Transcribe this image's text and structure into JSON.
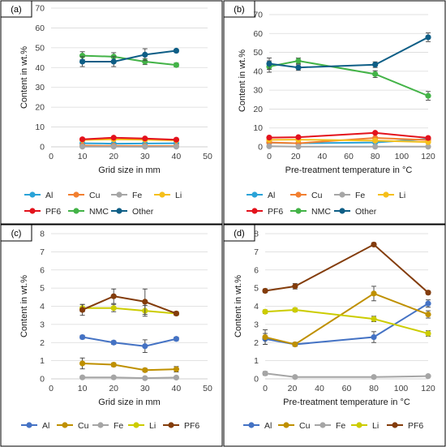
{
  "chart_data": [
    {
      "type": "line",
      "panel_label": "(a)",
      "xlabel": "Grid size in mm",
      "ylabel": "Content in wt.%",
      "xlim": [
        0,
        50
      ],
      "ylim": [
        0,
        70
      ],
      "xticks": [
        0,
        10,
        20,
        30,
        40,
        50
      ],
      "yticks": [
        0,
        10,
        20,
        30,
        40,
        50,
        60,
        70
      ],
      "grid": true,
      "legend_position": "bottom",
      "x": [
        10,
        20,
        30,
        40
      ],
      "series": [
        {
          "name": "Al",
          "color": "#2aa3d8",
          "values": [
            1.8,
            1.6,
            1.7,
            1.8
          ],
          "errors": [
            0.2,
            0.2,
            0.2,
            0.2
          ]
        },
        {
          "name": "Cu",
          "color": "#f27f30",
          "values": [
            0.6,
            0.5,
            0.4,
            0.4
          ],
          "errors": [
            0.1,
            0.1,
            0.1,
            0.1
          ]
        },
        {
          "name": "Fe",
          "color": "#a6a6a6",
          "values": [
            0.1,
            0.1,
            0.05,
            0.1
          ],
          "errors": [
            0.05,
            0.05,
            0.05,
            0.05
          ]
        },
        {
          "name": "Li",
          "color": "#f5bf1b",
          "values": [
            3.5,
            3.8,
            3.6,
            3.3
          ],
          "errors": [
            0.3,
            0.3,
            0.3,
            0.3
          ]
        },
        {
          "name": "PF6",
          "color": "#e3121c",
          "values": [
            3.8,
            4.6,
            4.2,
            3.6
          ],
          "errors": [
            0.3,
            0.3,
            0.4,
            0.2
          ]
        },
        {
          "name": "NMC",
          "color": "#43b347",
          "values": [
            46,
            45.5,
            43,
            41.3
          ],
          "errors": [
            2,
            2,
            1.5,
            1
          ]
        },
        {
          "name": "Other",
          "color": "#0e5e86",
          "values": [
            43,
            43,
            46.5,
            48.5
          ],
          "errors": [
            2.5,
            2.5,
            3,
            0.8
          ]
        }
      ]
    },
    {
      "type": "line",
      "panel_label": "(b)",
      "xlabel": "Pre-treatment temperature in °C",
      "ylabel": "Content in wt.%",
      "xlim": [
        0,
        120
      ],
      "ylim": [
        0,
        70
      ],
      "xticks": [
        0,
        20,
        40,
        60,
        80,
        100,
        120
      ],
      "yticks": [
        0,
        10,
        20,
        30,
        40,
        50,
        60,
        70
      ],
      "grid": true,
      "legend_position": "bottom",
      "x": [
        0,
        22,
        80,
        120
      ],
      "series": [
        {
          "name": "Al",
          "color": "#2aa3d8",
          "values": [
            2.2,
            1.9,
            2.3,
            4.2
          ],
          "errors": [
            0.3,
            0.2,
            0.3,
            0.3
          ]
        },
        {
          "name": "Cu",
          "color": "#f27f30",
          "values": [
            2.3,
            1.9,
            4.7,
            3.6
          ],
          "errors": [
            0.4,
            0.2,
            0.5,
            0.3
          ]
        },
        {
          "name": "Fe",
          "color": "#a6a6a6",
          "values": [
            0.3,
            0.1,
            0.1,
            0.1
          ],
          "errors": [
            0.1,
            0.05,
            0.05,
            0.05
          ]
        },
        {
          "name": "Li",
          "color": "#f5bf1b",
          "values": [
            3.7,
            3.8,
            3.3,
            2.5
          ],
          "errors": [
            0.3,
            0.3,
            0.3,
            0.2
          ]
        },
        {
          "name": "PF6",
          "color": "#e3121c",
          "values": [
            4.9,
            5.1,
            7.4,
            4.7
          ],
          "errors": [
            0.3,
            0.3,
            0.3,
            0.3
          ]
        },
        {
          "name": "NMC",
          "color": "#43b347",
          "values": [
            42.5,
            45.5,
            38.5,
            27
          ],
          "errors": [
            3,
            1.5,
            1.8,
            2.3
          ]
        },
        {
          "name": "Other",
          "color": "#0e5e86",
          "values": [
            44,
            42,
            43.5,
            58
          ],
          "errors": [
            3,
            1.5,
            1.5,
            2.3
          ]
        }
      ]
    },
    {
      "type": "line",
      "panel_label": "(c)",
      "xlabel": "Grid size in mm",
      "ylabel": "Content in wt.%",
      "xlim": [
        0,
        50
      ],
      "ylim": [
        0,
        8
      ],
      "xticks": [
        0,
        10,
        20,
        30,
        40,
        50
      ],
      "yticks": [
        0,
        1,
        2,
        3,
        4,
        5,
        6,
        7,
        8
      ],
      "grid": true,
      "legend_position": "bottom",
      "x": [
        10,
        20,
        30,
        40
      ],
      "series": [
        {
          "name": "Al",
          "color": "#4472c4",
          "values": [
            2.3,
            2.0,
            1.8,
            2.2
          ],
          "errors": [
            0.1,
            0.1,
            0.35,
            0.1
          ]
        },
        {
          "name": "Cu",
          "color": "#bf9000",
          "values": [
            0.85,
            0.78,
            0.48,
            0.53
          ],
          "errors": [
            0.3,
            0.1,
            0.1,
            0.15
          ]
        },
        {
          "name": "Fe",
          "color": "#a5a5a5",
          "values": [
            0.08,
            0.08,
            0.04,
            0.07
          ],
          "errors": [
            0.02,
            0.02,
            0.02,
            0.02
          ]
        },
        {
          "name": "Li",
          "color": "#cccc00",
          "values": [
            3.9,
            3.9,
            3.75,
            3.6
          ],
          "errors": [
            0.2,
            0.2,
            0.3,
            0.1
          ]
        },
        {
          "name": "PF6",
          "color": "#833c0b",
          "values": [
            3.8,
            4.55,
            4.25,
            3.6
          ],
          "errors": [
            0.3,
            0.4,
            0.7,
            0.1
          ]
        }
      ]
    },
    {
      "type": "line",
      "panel_label": "(d)",
      "xlabel": "Pre-treatment temperature in °C",
      "ylabel": "Content in wt.%",
      "xlim": [
        0,
        120
      ],
      "ylim": [
        0,
        8
      ],
      "xticks": [
        0,
        20,
        40,
        60,
        80,
        100,
        120
      ],
      "yticks": [
        0,
        1,
        2,
        3,
        4,
        5,
        6,
        7,
        8
      ],
      "grid": true,
      "legend_position": "bottom",
      "x": [
        0,
        22,
        80,
        120
      ],
      "series": [
        {
          "name": "Al",
          "color": "#4472c4",
          "values": [
            2.2,
            1.9,
            2.3,
            4.15
          ],
          "errors": [
            0.3,
            0.1,
            0.3,
            0.2
          ]
        },
        {
          "name": "Cu",
          "color": "#bf9000",
          "values": [
            2.3,
            1.9,
            4.7,
            3.55
          ],
          "errors": [
            0.4,
            0.1,
            0.4,
            0.2
          ]
        },
        {
          "name": "Fe",
          "color": "#a5a5a5",
          "values": [
            0.3,
            0.1,
            0.1,
            0.15
          ],
          "errors": [
            0.1,
            0.02,
            0.02,
            0.02
          ]
        },
        {
          "name": "Li",
          "color": "#cccc00",
          "values": [
            3.7,
            3.8,
            3.3,
            2.5
          ],
          "errors": [
            0.1,
            0.1,
            0.15,
            0.15
          ]
        },
        {
          "name": "PF6",
          "color": "#833c0b",
          "values": [
            4.85,
            5.1,
            7.4,
            4.75
          ],
          "errors": [
            0.1,
            0.15,
            0.1,
            0.1
          ]
        }
      ]
    }
  ]
}
